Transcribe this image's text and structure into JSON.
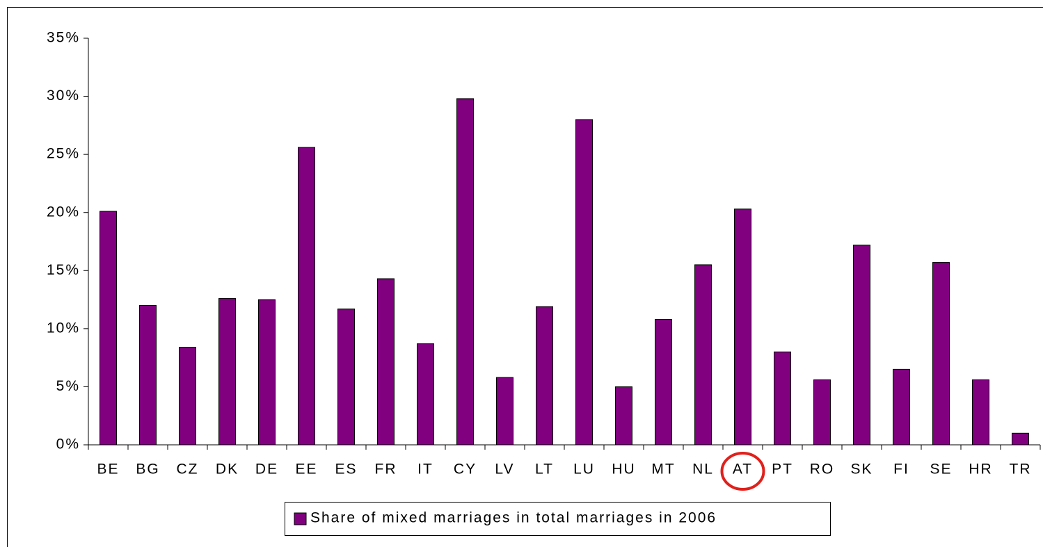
{
  "chart_data": {
    "type": "bar",
    "categories": [
      "BE",
      "BG",
      "CZ",
      "DK",
      "DE",
      "EE",
      "ES",
      "FR",
      "IT",
      "CY",
      "LV",
      "LT",
      "LU",
      "HU",
      "MT",
      "NL",
      "AT",
      "PT",
      "RO",
      "SK",
      "FI",
      "SE",
      "HR",
      "TR"
    ],
    "series": [
      {
        "name": "Share of mixed marriages in total marriages in 2006",
        "color": "#800080",
        "values": [
          20.1,
          12.0,
          8.4,
          12.6,
          12.5,
          25.6,
          11.7,
          14.3,
          8.7,
          29.8,
          5.8,
          11.9,
          28.0,
          5.0,
          10.8,
          15.5,
          20.3,
          8.0,
          5.6,
          17.2,
          6.5,
          15.7,
          5.6,
          1.0
        ]
      }
    ],
    "ylim": [
      0,
      35
    ],
    "yticks": [
      {
        "value": 0,
        "label": "0%"
      },
      {
        "value": 5,
        "label": "5%"
      },
      {
        "value": 10,
        "label": "10%"
      },
      {
        "value": 15,
        "label": "15%"
      },
      {
        "value": 20,
        "label": "20%"
      },
      {
        "value": 25,
        "label": "25%"
      },
      {
        "value": 30,
        "label": "30%"
      },
      {
        "value": 35,
        "label": "35%"
      }
    ],
    "grid": false,
    "legend": "bottom"
  }
}
